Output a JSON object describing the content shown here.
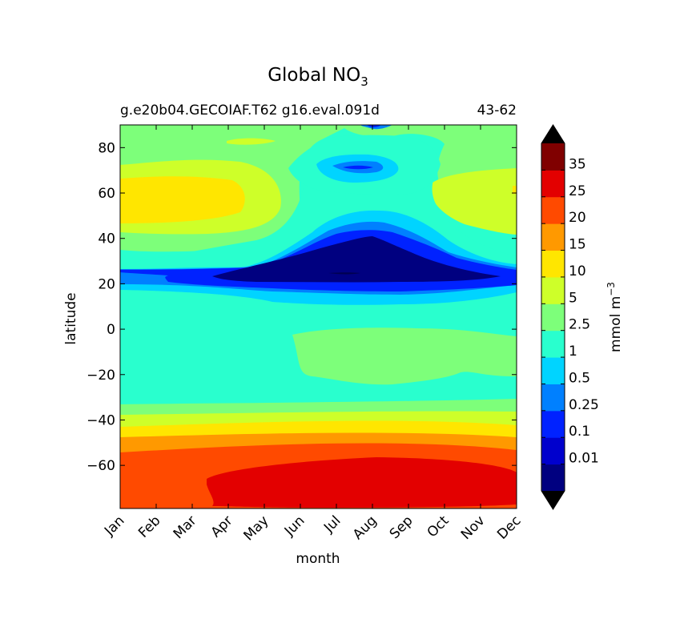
{
  "chart_data": {
    "type": "heatmap",
    "title": "Global NO",
    "title_subscript": "3",
    "subtitle_left": "g.e20b04.GECOIAF.T62 g16.eval.091d",
    "subtitle_right": "43-62",
    "xlabel": "month",
    "ylabel": "latitude",
    "x_tick_labels": [
      "Jan",
      "Feb",
      "Mar",
      "Apr",
      "May",
      "Jun",
      "Jul",
      "Aug",
      "Sep",
      "Oct",
      "Nov",
      "Dec"
    ],
    "y_ticks": [
      80,
      60,
      40,
      20,
      0,
      -20,
      -40,
      -60
    ],
    "y_tick_labels": [
      "80",
      "60",
      "40",
      "20",
      "0",
      "−20",
      "−40",
      "−60"
    ],
    "ylim": [
      -79,
      90
    ],
    "colorbar": {
      "label": "mmol m",
      "label_superscript": "−3",
      "levels": [
        0.01,
        0.1,
        0.25,
        0.5,
        1,
        2.5,
        5,
        10,
        15,
        20,
        25,
        35
      ],
      "level_labels": [
        "0.01",
        "0.1",
        "0.25",
        "0.5",
        "1",
        "2.5",
        "5",
        "10",
        "15",
        "20",
        "25",
        "35"
      ],
      "colors": [
        "#000080",
        "#0000cd",
        "#0022ff",
        "#0080ff",
        "#00d4ff",
        "#29ffce",
        "#7dff7a",
        "#ceff29",
        "#ffe600",
        "#ff9900",
        "#ff4a00",
        "#e30000",
        "#800000"
      ],
      "under_color": "#000000",
      "over_color": "#000000"
    },
    "grid": false,
    "description_values": {
      "north_high_lat_winter_max": 10,
      "subtropical_summer_min": 0.01,
      "southern_ocean_max": 35
    }
  }
}
